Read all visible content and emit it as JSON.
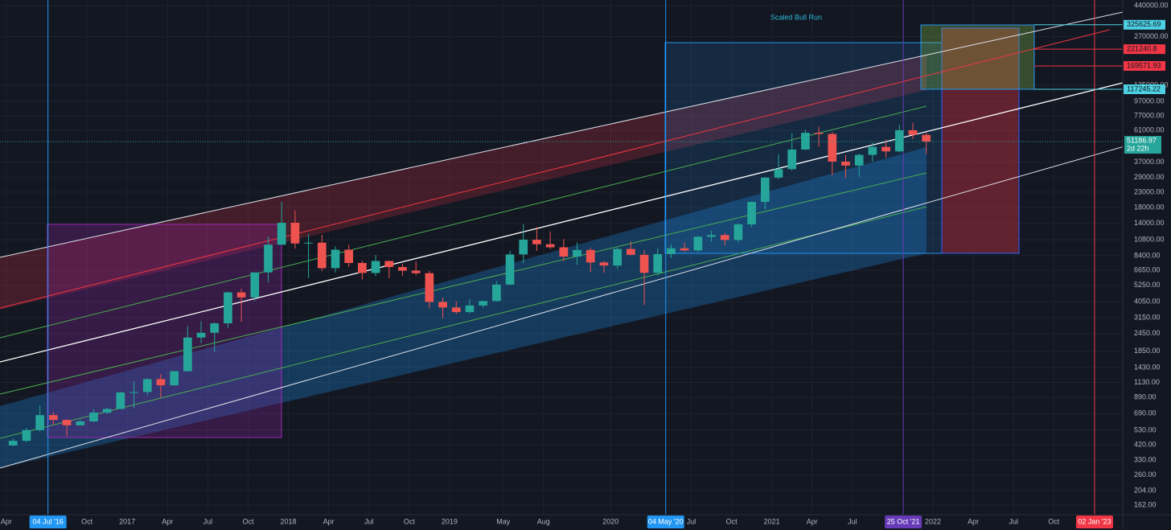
{
  "chart_data": {
    "type": "candlestick",
    "annotation": "Scaled Bull Run",
    "log_scale": true,
    "grid": true,
    "up_color": "#26a69a",
    "down_color": "#ef5350",
    "xlim": [
      "2016-03-17",
      "2023-03-05"
    ],
    "ylim": [
      139,
      482000
    ],
    "x": [
      "2016-04",
      "2016-05",
      "2016-06",
      "2016-07",
      "2016-08",
      "2016-09",
      "2016-10",
      "2016-11",
      "2016-12",
      "2017-01",
      "2017-02",
      "2017-03",
      "2017-04",
      "2017-05",
      "2017-06",
      "2017-07",
      "2017-08",
      "2017-09",
      "2017-10",
      "2017-11",
      "2017-12",
      "2018-01",
      "2018-02",
      "2018-03",
      "2018-04",
      "2018-05",
      "2018-06",
      "2018-07",
      "2018-08",
      "2018-09",
      "2018-10",
      "2018-11",
      "2018-12",
      "2019-01",
      "2019-02",
      "2019-03",
      "2019-04",
      "2019-05",
      "2019-06",
      "2019-07",
      "2019-08",
      "2019-09",
      "2019-10",
      "2019-11",
      "2019-12",
      "2020-01",
      "2020-02",
      "2020-03",
      "2020-04",
      "2020-05",
      "2020-06",
      "2020-07",
      "2020-08",
      "2020-09",
      "2020-10",
      "2020-11",
      "2020-12",
      "2021-01",
      "2021-02",
      "2021-03",
      "2021-04",
      "2021-05",
      "2021-06",
      "2021-07",
      "2021-08",
      "2021-09",
      "2021-10",
      "2021-11",
      "2021-12"
    ],
    "open": [
      416,
      448,
      531,
      673,
      624,
      573,
      609,
      700,
      742,
      963,
      970,
      1190,
      1080,
      1350,
      2300,
      2480,
      2880,
      4700,
      4340,
      6450,
      10000,
      14150,
      10200,
      10330,
      6900,
      9240,
      7490,
      6390,
      7730,
      7020,
      6630,
      6370,
      4040,
      3700,
      3440,
      3820,
      4100,
      5320,
      8570,
      10820,
      10080,
      9600,
      8290,
      9200,
      7550,
      7190,
      9350,
      8520,
      6410,
      8620,
      9450,
      9140,
      11350,
      11650,
      10780,
      13800,
      19700,
      28950,
      33100,
      45150,
      58800,
      57750,
      37300,
      35040,
      41460,
      47100,
      43820,
      61300,
      56950
    ],
    "high": [
      466,
      550,
      780,
      705,
      627,
      630,
      740,
      755,
      975,
      1150,
      1210,
      1290,
      1350,
      2760,
      2980,
      2920,
      4770,
      4980,
      6470,
      11400,
      19700,
      17200,
      11800,
      11700,
      9760,
      9990,
      7760,
      8500,
      7760,
      7400,
      7680,
      6590,
      4320,
      4080,
      4210,
      4120,
      5630,
      9090,
      13880,
      13200,
      12330,
      10950,
      10370,
      9510,
      7740,
      9590,
      10500,
      9190,
      9470,
      10070,
      10380,
      11440,
      12480,
      12070,
      14100,
      19860,
      29300,
      41950,
      58350,
      61780,
      64900,
      59600,
      41300,
      42400,
      50500,
      52920,
      67000,
      69000,
      59050
    ],
    "low": [
      412,
      438,
      520,
      580,
      480,
      572,
      605,
      685,
      740,
      750,
      920,
      890,
      1070,
      1340,
      2100,
      1840,
      2680,
      2950,
      4110,
      5500,
      10000,
      9400,
      5900,
      6600,
      6430,
      7040,
      5770,
      6070,
      5880,
      6120,
      6180,
      3650,
      3120,
      3350,
      3380,
      3700,
      4060,
      5280,
      7450,
      9070,
      9340,
      7700,
      7300,
      6500,
      6430,
      6850,
      8450,
      3850,
      6150,
      8100,
      8900,
      8900,
      10520,
      9880,
      10370,
      13200,
      17570,
      28130,
      32300,
      44950,
      47000,
      30000,
      28800,
      29300,
      37300,
      39600,
      43300,
      53250,
      42000
    ],
    "close": [
      448,
      531,
      673,
      624,
      573,
      609,
      700,
      742,
      963,
      970,
      1190,
      1080,
      1350,
      2300,
      2480,
      2880,
      4700,
      4340,
      6450,
      10000,
      14150,
      10200,
      10330,
      6900,
      9240,
      7490,
      6390,
      7730,
      7020,
      6630,
      6370,
      4040,
      3700,
      3440,
      3820,
      4100,
      5320,
      8570,
      10820,
      10080,
      9600,
      8290,
      9200,
      7550,
      7190,
      9350,
      8520,
      6410,
      8620,
      9450,
      9140,
      11350,
      11650,
      10780,
      13800,
      19700,
      28950,
      33100,
      45150,
      58800,
      57750,
      37300,
      35040,
      41460,
      47100,
      43820,
      61300,
      56950,
      51186.97
    ],
    "countdown": "2d 22h",
    "yticks": [
      {
        "value": 162,
        "label": "162.00"
      },
      {
        "value": 204,
        "label": "204.00"
      },
      {
        "value": 260,
        "label": "260.00"
      },
      {
        "value": 330,
        "label": "330.00"
      },
      {
        "value": 420,
        "label": "420.00"
      },
      {
        "value": 530,
        "label": "530.00"
      },
      {
        "value": 690,
        "label": "690.00"
      },
      {
        "value": 890,
        "label": "890.00"
      },
      {
        "value": 1130,
        "label": "1130.00"
      },
      {
        "value": 1430,
        "label": "1430.00"
      },
      {
        "value": 1850,
        "label": "1850.00"
      },
      {
        "value": 2450,
        "label": "2450.00"
      },
      {
        "value": 3150,
        "label": "3150.00"
      },
      {
        "value": 4050,
        "label": "4050.00"
      },
      {
        "value": 5250,
        "label": "5250.00"
      },
      {
        "value": 6650,
        "label": "6650.00"
      },
      {
        "value": 8400,
        "label": "8400.00"
      },
      {
        "value": 10800,
        "label": "10800.00"
      },
      {
        "value": 14000,
        "label": "14000.00"
      },
      {
        "value": 18000,
        "label": "18000.00"
      },
      {
        "value": 23000,
        "label": "23000.00"
      },
      {
        "value": 29000,
        "label": "29000.00"
      },
      {
        "value": 37000,
        "label": "37000.00"
      },
      {
        "value": 61000,
        "label": "61000.00"
      },
      {
        "value": 77000,
        "label": "77000.00"
      },
      {
        "value": 97000,
        "label": "97000.00"
      },
      {
        "value": 125000,
        "label": "125000.00"
      },
      {
        "value": 270000,
        "label": "270000.00"
      },
      {
        "value": 440000,
        "label": "440000.00"
      }
    ],
    "xticks": [
      {
        "value": "2016-04",
        "label": "Apr"
      },
      {
        "value": "2016-10",
        "label": "Oct"
      },
      {
        "value": "2017-01",
        "label": "2017"
      },
      {
        "value": "2017-04",
        "label": "Apr"
      },
      {
        "value": "2017-07",
        "label": "Jul"
      },
      {
        "value": "2017-10",
        "label": "Oct"
      },
      {
        "value": "2018-01",
        "label": "2018"
      },
      {
        "value": "2018-04",
        "label": "Apr"
      },
      {
        "value": "2018-07",
        "label": "Jul"
      },
      {
        "value": "2018-10",
        "label": "Oct"
      },
      {
        "value": "2019-01",
        "label": "2019"
      },
      {
        "value": "2019-05",
        "label": "May"
      },
      {
        "value": "2019-08",
        "label": "Aug"
      },
      {
        "value": "2020-01",
        "label": "2020"
      },
      {
        "value": "2020-07",
        "label": "Jul"
      },
      {
        "value": "2020-10",
        "label": "Oct"
      },
      {
        "value": "2021-01",
        "label": "2021"
      },
      {
        "value": "2021-04",
        "label": "Apr"
      },
      {
        "value": "2021-07",
        "label": "Jul"
      },
      {
        "value": "2022-01",
        "label": "2022"
      },
      {
        "value": "2022-04",
        "label": "Apr"
      },
      {
        "value": "2022-07",
        "label": "Jul"
      },
      {
        "value": "2022-10",
        "label": "Oct"
      }
    ],
    "markers": [
      {
        "value": "2016-07-04",
        "label": "04 Jul '16",
        "color": "#2196f3"
      },
      {
        "value": "2020-05-04",
        "label": "04 May '20",
        "color": "#2196f3"
      },
      {
        "value": "2021-10-25",
        "label": "25 Oct '21",
        "color": "#673ab7"
      },
      {
        "value": "2023-01-02",
        "label": "02 Jan '23",
        "color": "#f23645"
      }
    ],
    "price_levels": [
      {
        "value": 325625.69,
        "color": "#4dd0e1"
      },
      {
        "value": 221240.8,
        "color": "#f23645"
      },
      {
        "value": 169571.93,
        "color": "#f23645"
      },
      {
        "value": 117245.22,
        "color": "#4dd0e1"
      }
    ]
  }
}
